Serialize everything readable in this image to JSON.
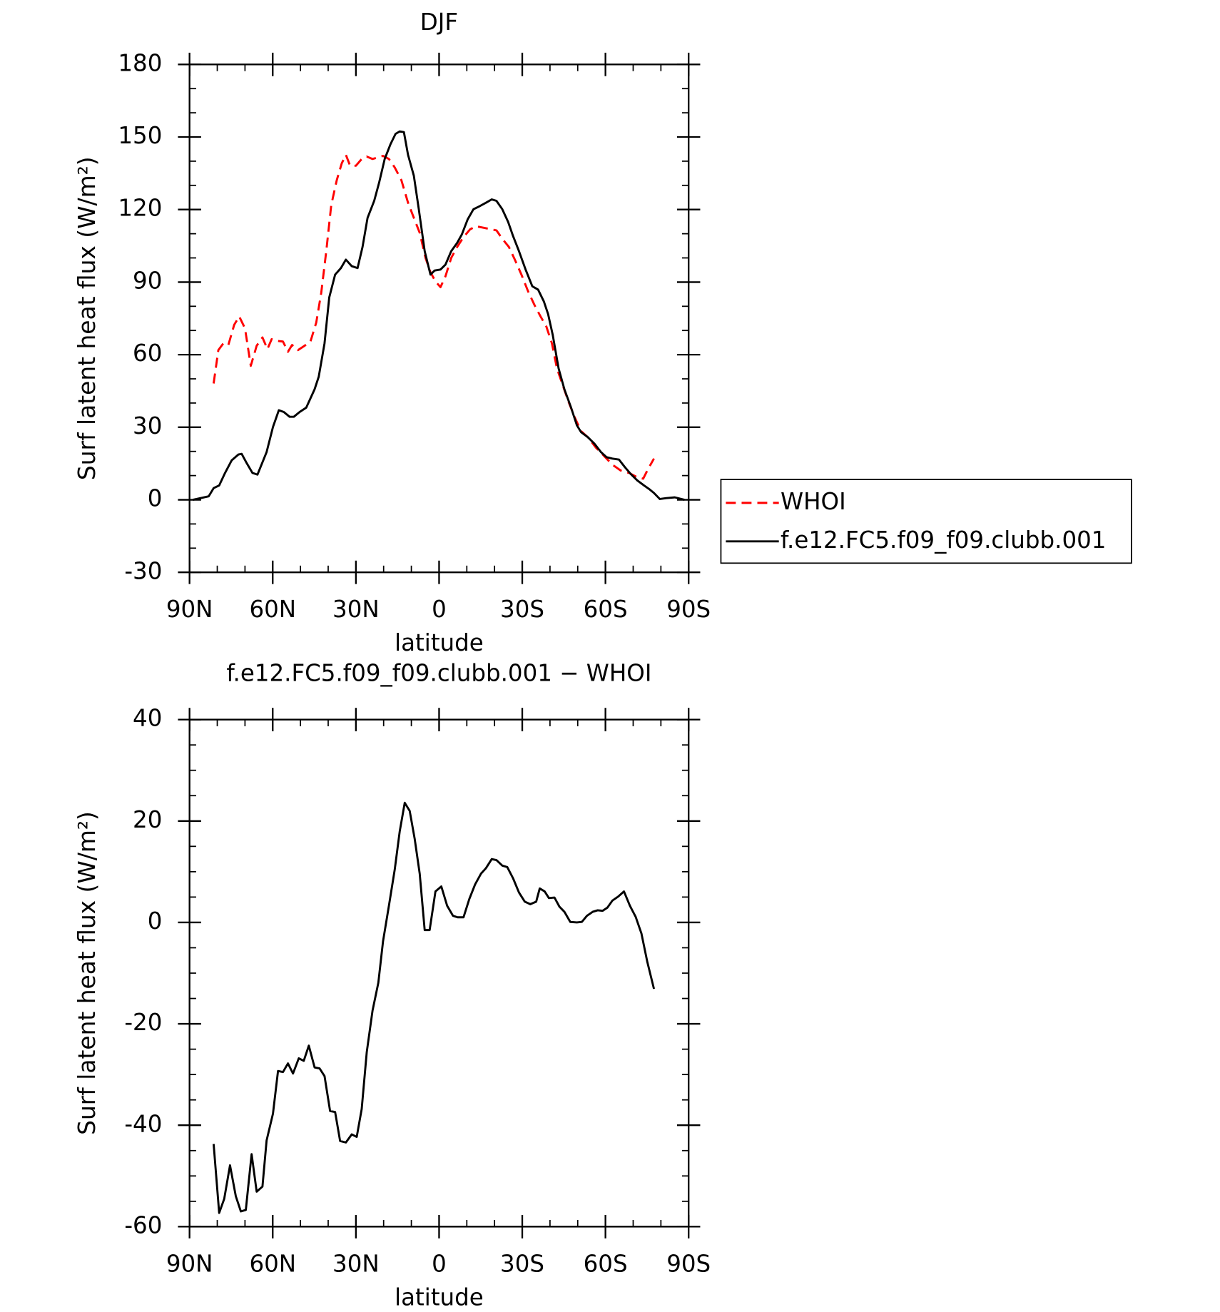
{
  "chart_data": [
    {
      "type": "line",
      "title": "DJF",
      "xlabel": "latitude",
      "ylabel": "Surf latent heat flux (W/m²)",
      "xlim": [
        90,
        -90
      ],
      "xticks": [
        {
          "value": 90,
          "label": "90N"
        },
        {
          "value": 60,
          "label": "60N"
        },
        {
          "value": 30,
          "label": "30N"
        },
        0,
        {
          "value": -30,
          "label": "30S"
        },
        {
          "value": -60,
          "label": "60S"
        },
        {
          "value": -90,
          "label": "90S"
        }
      ],
      "ylim": [
        -30,
        180
      ],
      "yticks": [
        -30,
        0,
        30,
        60,
        90,
        120,
        150,
        180
      ],
      "legend": "right",
      "series": [
        {
          "name": "WHOI",
          "color": "#ff0000",
          "line_style": "dashed",
          "x": [
            81.3,
            79.6,
            77.8,
            76.0,
            73.9,
            72.1,
            70.0,
            67.9,
            65.8,
            63.7,
            61.9,
            60.4,
            58.4,
            56.3,
            54.5,
            53.0,
            50.9,
            48.5,
            46.4,
            44.3,
            42.5,
            40.7,
            38.9,
            36.9,
            35.1,
            33.6,
            32.1,
            30.0,
            27.9,
            26.1,
            24.0,
            21.9,
            20.2,
            18.1,
            16.0,
            13.6,
            11.2,
            9.1,
            7.0,
            4.9,
            3.1,
            1.3,
            -0.5,
            -2.3,
            -4.4,
            -6.5,
            -8.8,
            -11.2,
            -13.3,
            -16.3,
            -20.7,
            -22.8,
            -25.2,
            -27.3,
            -29.7,
            -32.1,
            -34.5,
            -36.6,
            -38.7,
            -40.7,
            -42.5,
            -44.6,
            -46.7,
            -49.1,
            -51.2,
            -53.6,
            -56.6,
            -59.6,
            -62.5,
            -65.5,
            -68.5,
            -71.5,
            -73.6,
            -75.4,
            -77.5
          ],
          "values": [
            48.1,
            61.9,
            64.7,
            64.0,
            72.3,
            75.8,
            70.9,
            55.4,
            63.7,
            67.1,
            62.3,
            66.4,
            65.7,
            65.4,
            61.2,
            64.0,
            61.9,
            63.7,
            65.4,
            73.3,
            85.5,
            102.8,
            121.8,
            132.2,
            139.1,
            142.6,
            138.1,
            138.1,
            140.9,
            141.9,
            140.9,
            141.6,
            142.2,
            140.9,
            137.4,
            132.2,
            122.8,
            116.6,
            110.4,
            100.0,
            94.1,
            90.3,
            87.9,
            92.4,
            100.0,
            104.5,
            108.6,
            111.8,
            113.1,
            112.4,
            111.4,
            107.9,
            104.5,
            99.3,
            93.1,
            86.2,
            80.3,
            75.8,
            71.6,
            64.7,
            54.3,
            47.4,
            40.5,
            33.6,
            28.4,
            25.9,
            21.5,
            18.0,
            14.5,
            12.1,
            11.1,
            9.3,
            8.7,
            12.8,
            17.0
          ]
        },
        {
          "name": "f.e12.FC5.f09_f09.clubb.001",
          "color": "#000000",
          "line_style": "solid",
          "x": [
            88.8,
            83.1,
            81.3,
            79.3,
            77.2,
            74.8,
            72.4,
            71.2,
            69.4,
            67.3,
            65.5,
            62.2,
            59.9,
            57.8,
            56.0,
            53.9,
            52.4,
            50.3,
            47.9,
            44.9,
            43.4,
            41.3,
            39.6,
            37.5,
            35.4,
            33.6,
            31.5,
            29.4,
            27.6,
            25.8,
            23.4,
            21.6,
            19.6,
            17.5,
            15.7,
            14.2,
            12.7,
            11.2,
            9.1,
            7.3,
            5.2,
            3.1,
            1.6,
            -0.5,
            -2.3,
            -4.4,
            -6.5,
            -8.2,
            -10.3,
            -12.4,
            -14.8,
            -16.9,
            -19.0,
            -20.7,
            -22.8,
            -24.9,
            -26.7,
            -28.8,
            -31.2,
            -33.6,
            -35.7,
            -37.8,
            -39.3,
            -41.0,
            -43.1,
            -45.2,
            -47.6,
            -49.7,
            -51.2,
            -53.6,
            -56.0,
            -58.4,
            -60.4,
            -62.5,
            -64.9,
            -67.0,
            -69.1,
            -71.5,
            -73.9,
            -76.0,
            -77.5,
            -79.6,
            -82.0,
            -85.0,
            -88.5
          ],
          "values": [
            0,
            1.4,
            4.8,
            5.9,
            11.1,
            16.3,
            18.7,
            19.0,
            15.2,
            11.1,
            10.4,
            19.7,
            30.1,
            37.0,
            36.3,
            34.3,
            34.3,
            36.3,
            38.1,
            45.7,
            50.9,
            64.7,
            83.7,
            93.1,
            95.8,
            99.3,
            96.6,
            95.8,
            104.5,
            116.6,
            123.6,
            131.2,
            140.9,
            147.1,
            151.3,
            152.3,
            152.0,
            142.6,
            134.0,
            120.1,
            102.8,
            93.1,
            94.8,
            95.2,
            97.2,
            102.8,
            106.2,
            109.7,
            115.9,
            120.1,
            121.5,
            122.8,
            124.2,
            123.6,
            120.1,
            114.9,
            109.0,
            102.8,
            95.2,
            88.3,
            86.9,
            82.0,
            76.8,
            68.2,
            54.3,
            45.7,
            38.1,
            30.8,
            28.0,
            25.9,
            23.2,
            19.7,
            17.6,
            17.0,
            16.6,
            13.5,
            10.7,
            8.0,
            5.9,
            4.2,
            2.8,
            0.3,
            0.7,
            1.0,
            0
          ]
        }
      ]
    },
    {
      "type": "line",
      "title": "f.e12.FC5.f09_f09.clubb.001 − WHOI",
      "xlabel": "latitude",
      "ylabel": "Surf latent heat flux (W/m²)",
      "xlim": [
        90,
        -90
      ],
      "xticks": [
        {
          "value": 90,
          "label": "90N"
        },
        {
          "value": 60,
          "label": "60N"
        },
        {
          "value": 30,
          "label": "30N"
        },
        0,
        {
          "value": -30,
          "label": "30S"
        },
        {
          "value": -60,
          "label": "60S"
        },
        {
          "value": -90,
          "label": "90S"
        }
      ],
      "ylim": [
        -60,
        40
      ],
      "yticks": [
        -60,
        -40,
        -20,
        0,
        20,
        40
      ],
      "color": "#000000",
      "x": [
        81.3,
        79.3,
        77.5,
        75.4,
        73.3,
        71.5,
        69.7,
        67.6,
        65.8,
        63.7,
        62.2,
        59.9,
        58.1,
        56.3,
        54.5,
        52.7,
        50.6,
        48.8,
        47.0,
        44.9,
        43.1,
        41.3,
        39.3,
        37.5,
        35.7,
        33.6,
        31.5,
        29.7,
        27.9,
        26.1,
        24.0,
        21.9,
        20.2,
        18.1,
        16.0,
        14.2,
        12.4,
        10.6,
        8.8,
        7.0,
        5.2,
        3.4,
        1.3,
        -0.8,
        -2.9,
        -5.0,
        -6.7,
        -8.8,
        -10.9,
        -13.0,
        -15.1,
        -16.9,
        -19.0,
        -20.7,
        -22.8,
        -24.6,
        -26.7,
        -28.8,
        -30.9,
        -32.9,
        -35.0,
        -36.3,
        -38.1,
        -39.6,
        -41.6,
        -43.4,
        -45.2,
        -47.3,
        -49.7,
        -51.5,
        -53.3,
        -55.4,
        -57.2,
        -59.0,
        -60.7,
        -62.5,
        -64.6,
        -66.7,
        -68.8,
        -70.9,
        -73.0,
        -75.1,
        -77.5
      ],
      "values": [
        -43.7,
        -57.3,
        -54.5,
        -47.9,
        -54.0,
        -57.0,
        -56.7,
        -45.7,
        -53.1,
        -52.1,
        -43.0,
        -37.7,
        -29.3,
        -29.5,
        -27.8,
        -29.8,
        -26.8,
        -27.3,
        -24.3,
        -28.6,
        -28.8,
        -30.3,
        -37.2,
        -37.4,
        -43.1,
        -43.4,
        -41.8,
        -42.3,
        -36.8,
        -25.6,
        -17.4,
        -11.9,
        -3.7,
        3.3,
        10.4,
        17.9,
        23.6,
        22.0,
        16.5,
        9.6,
        -1.5,
        -1.5,
        6.1,
        7.1,
        3.3,
        1.3,
        1.0,
        1.0,
        4.6,
        7.5,
        9.6,
        10.7,
        12.5,
        12.3,
        11.2,
        10.9,
        8.7,
        5.9,
        4.1,
        3.6,
        4.1,
        6.7,
        6.1,
        4.8,
        4.9,
        3.1,
        2.1,
        0.1,
        0,
        0.1,
        1.3,
        2.1,
        2.4,
        2.3,
        2.9,
        4.3,
        5.1,
        6.1,
        3.3,
        1.1,
        -2.2,
        -7.8,
        -13.1
      ]
    }
  ]
}
